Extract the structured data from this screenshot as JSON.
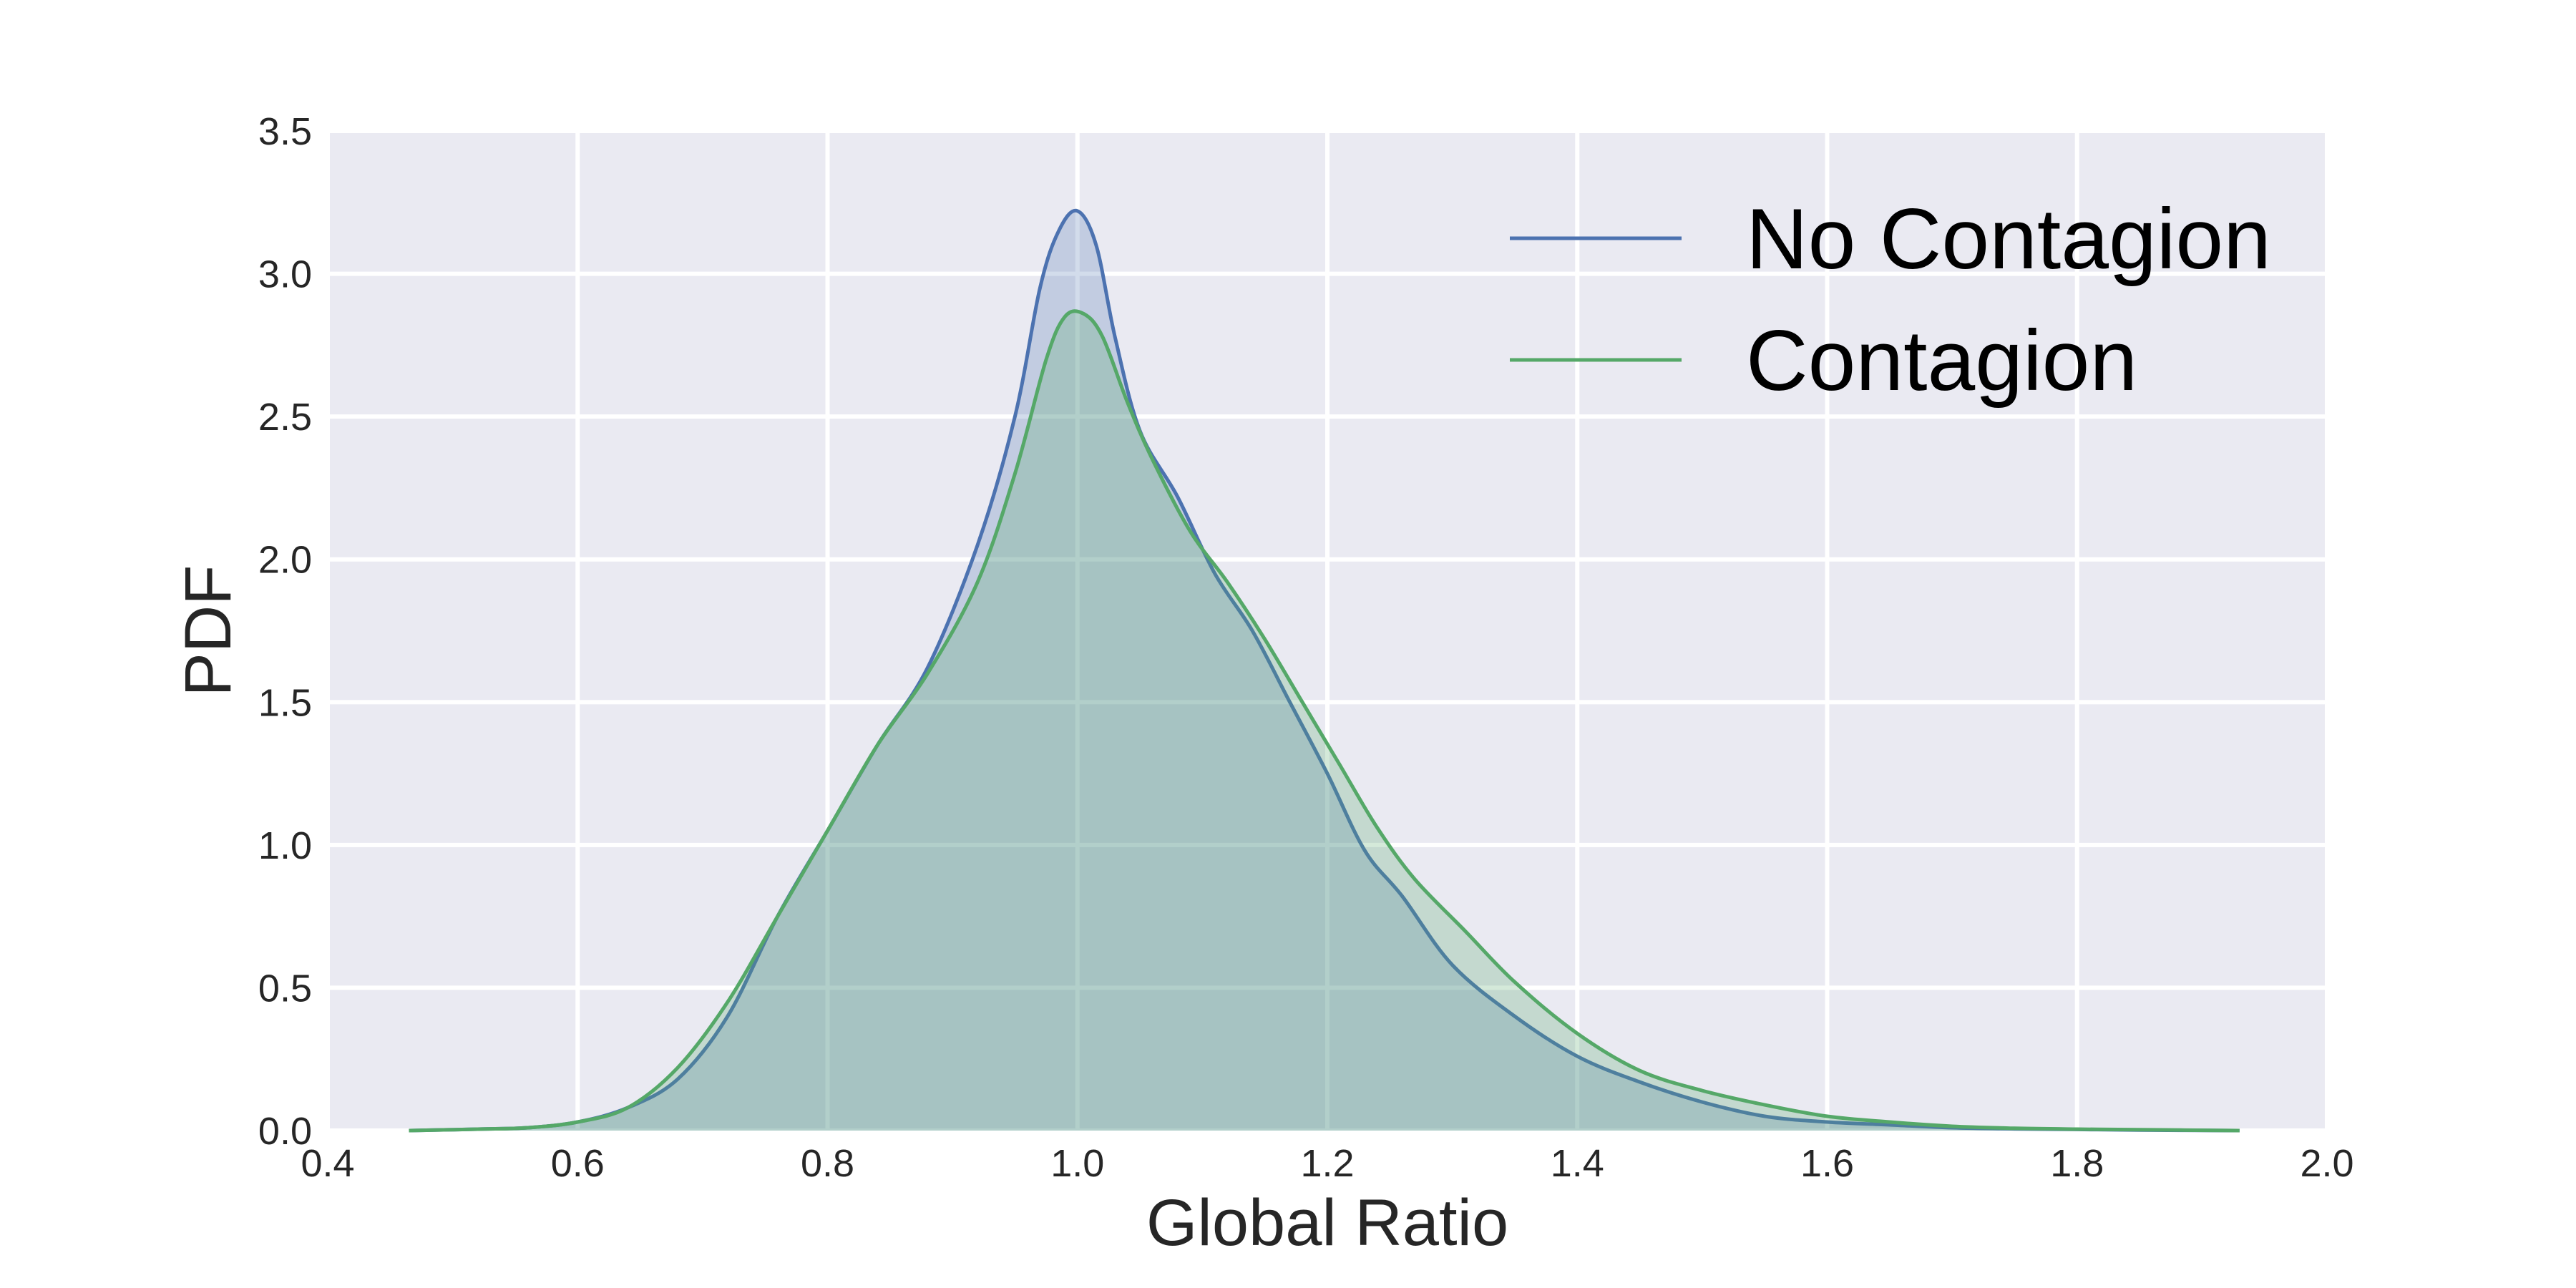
{
  "chart_data": {
    "type": "area",
    "title": "",
    "xlabel": "Global Ratio",
    "ylabel": "PDF",
    "xlim": [
      0.4,
      2.0
    ],
    "ylim": [
      0.0,
      3.5
    ],
    "xticks": [
      0.4,
      0.6,
      0.8,
      1.0,
      1.2,
      1.4,
      1.6,
      1.8,
      2.0
    ],
    "xtick_labels": [
      "0.4",
      "0.6",
      "0.8",
      "1.0",
      "1.2",
      "1.4",
      "1.6",
      "1.8",
      "2.0"
    ],
    "yticks": [
      0.0,
      0.5,
      1.0,
      1.5,
      2.0,
      2.5,
      3.0,
      3.5
    ],
    "ytick_labels": [
      "0.0",
      "0.5",
      "1.0",
      "1.5",
      "2.0",
      "2.5",
      "3.0",
      "3.5"
    ],
    "grid": true,
    "legend_position": "top-right",
    "background": "#eaeaf2",
    "series": [
      {
        "name": "No Contagion",
        "color": "#4c72b0",
        "x": [
          0.465,
          0.52,
          0.56,
          0.6,
          0.64,
          0.68,
          0.72,
          0.76,
          0.8,
          0.84,
          0.88,
          0.92,
          0.95,
          0.97,
          0.985,
          1.0,
          1.015,
          1.03,
          1.05,
          1.08,
          1.11,
          1.14,
          1.17,
          1.2,
          1.23,
          1.26,
          1.3,
          1.35,
          1.4,
          1.45,
          1.5,
          1.55,
          1.6,
          1.65,
          1.7,
          1.75,
          1.8,
          1.85,
          1.93
        ],
        "y": [
          0.0,
          0.005,
          0.01,
          0.03,
          0.08,
          0.18,
          0.4,
          0.75,
          1.05,
          1.35,
          1.62,
          2.05,
          2.5,
          2.95,
          3.15,
          3.22,
          3.1,
          2.78,
          2.45,
          2.22,
          1.95,
          1.75,
          1.5,
          1.25,
          0.98,
          0.82,
          0.58,
          0.4,
          0.26,
          0.17,
          0.1,
          0.05,
          0.03,
          0.02,
          0.01,
          0.006,
          0.004,
          0.002,
          0.0
        ]
      },
      {
        "name": "Contagion",
        "color": "#55a868",
        "x": [
          0.465,
          0.52,
          0.56,
          0.6,
          0.64,
          0.68,
          0.72,
          0.76,
          0.8,
          0.84,
          0.88,
          0.92,
          0.95,
          0.975,
          0.99,
          1.005,
          1.02,
          1.04,
          1.06,
          1.09,
          1.12,
          1.15,
          1.18,
          1.21,
          1.24,
          1.27,
          1.31,
          1.35,
          1.4,
          1.45,
          1.5,
          1.55,
          1.6,
          1.65,
          1.7,
          1.75,
          1.8,
          1.85,
          1.93
        ],
        "y": [
          0.0,
          0.005,
          0.01,
          0.03,
          0.08,
          0.22,
          0.45,
          0.75,
          1.05,
          1.35,
          1.6,
          1.92,
          2.3,
          2.7,
          2.85,
          2.86,
          2.78,
          2.55,
          2.35,
          2.1,
          1.92,
          1.72,
          1.5,
          1.28,
          1.06,
          0.88,
          0.7,
          0.52,
          0.34,
          0.21,
          0.14,
          0.09,
          0.05,
          0.03,
          0.015,
          0.008,
          0.005,
          0.003,
          0.0
        ]
      }
    ]
  }
}
